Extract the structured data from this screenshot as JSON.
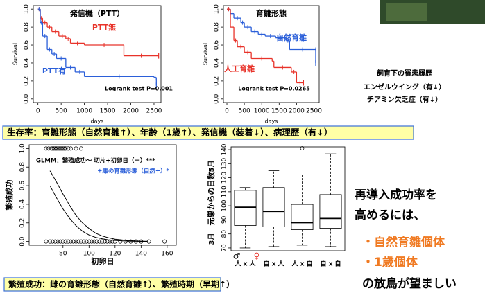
{
  "chart_data": [
    {
      "type": "step",
      "title": "発信機（PTT）",
      "x_label": "days",
      "y_label": "Survival",
      "annotation": "Logrank test P=0.001",
      "xlim": [
        -100,
        2650
      ],
      "xticks": [
        0,
        500,
        1000,
        1500,
        2000,
        2500
      ],
      "ylim": [
        -0.04,
        1.04
      ],
      "yticks": [
        {
          "value": 0,
          "label": "0.0"
        },
        0.2,
        0.4,
        0.6,
        0.8,
        {
          "value": 1,
          "label": "1.0"
        }
      ],
      "series": [
        {
          "name": "PTT無",
          "color": "#e8332a",
          "x": [
            0,
            50,
            100,
            200,
            300,
            450,
            600,
            700,
            1000,
            1850,
            2600
          ],
          "values": [
            1,
            0.9,
            0.85,
            0.8,
            0.75,
            0.7,
            0.67,
            0.62,
            0.6,
            0.48,
            0.48
          ]
        },
        {
          "name": "PTT有",
          "color": "#2b5fd9",
          "x": [
            0,
            50,
            100,
            200,
            300,
            400,
            600,
            800,
            1000,
            2500,
            2550
          ],
          "values": [
            1,
            0.85,
            0.7,
            0.55,
            0.5,
            0.45,
            0.35,
            0.3,
            0.25,
            0.24,
            0.15
          ]
        }
      ]
    },
    {
      "type": "step",
      "title": "育雛形態",
      "x_label": "days",
      "y_label": "Survival",
      "annotation": "Logrank test P=0.0265",
      "xlim": [
        -100,
        2650
      ],
      "xticks": [
        0,
        500,
        1000,
        1500,
        2000,
        2500
      ],
      "ylim": [
        -0.04,
        1.04
      ],
      "yticks": [
        {
          "value": 0,
          "label": "0.0"
        },
        0.2,
        0.4,
        0.6,
        0.8,
        {
          "value": 1,
          "label": "1.0"
        }
      ],
      "series": [
        {
          "name": "自然育雛",
          "color": "#2b5fd9",
          "x": [
            0,
            100,
            200,
            400,
            500,
            700,
            900,
            1100,
            1400,
            1700,
            1800,
            2550,
            2550
          ],
          "values": [
            1,
            0.95,
            0.9,
            0.85,
            0.8,
            0.75,
            0.72,
            0.7,
            0.68,
            0.65,
            0.55,
            0.55,
            0.4
          ]
        },
        {
          "name": "人工育雛",
          "color": "#e8332a",
          "x": [
            0,
            100,
            200,
            300,
            500,
            700,
            1300,
            1350,
            1850,
            2000,
            2200
          ],
          "values": [
            1,
            0.8,
            0.65,
            0.58,
            0.52,
            0.45,
            0.42,
            0.35,
            0.3,
            0.18,
            0.18
          ]
        }
      ]
    },
    {
      "type": "scatter",
      "x_label": "初卵日",
      "y_label": "繁殖成功",
      "annotation": "GLMM：繁殖成功～ 切片+初卵日（ー）***",
      "annotation2": "+雌の育雛形態（自然+）*",
      "xlim": [
        54,
        167
      ],
      "xticks": [
        80,
        100,
        120,
        140,
        160
      ],
      "ylim": [
        -0.04,
        1.04
      ],
      "yticks": [
        {
          "value": 0,
          "label": "0.0"
        },
        0.2,
        0.4,
        0.6,
        0.8,
        {
          "value": 1,
          "label": "1.0"
        }
      ],
      "points": {
        "x": [
          67,
          69,
          71,
          72,
          73,
          74,
          75,
          76,
          77,
          78,
          79,
          80,
          81,
          82,
          84,
          86,
          90,
          94,
          67,
          70,
          72,
          74,
          76,
          78,
          80,
          82,
          84,
          86,
          88,
          90,
          92,
          94,
          96,
          98,
          100,
          102,
          104,
          106,
          108,
          110,
          112,
          114,
          116,
          118,
          120,
          124,
          128,
          132,
          136,
          140,
          146,
          158
        ],
        "values": [
          1,
          1,
          1,
          1,
          1,
          1,
          1,
          1,
          1,
          1,
          1,
          1,
          1,
          1,
          1,
          1,
          1,
          1,
          0,
          0,
          0,
          0,
          0,
          0,
          0,
          0,
          0,
          0,
          0,
          0,
          0,
          0,
          0,
          0,
          0,
          0,
          0,
          0,
          0,
          0,
          0,
          0,
          0,
          0,
          0,
          0,
          0,
          0,
          0,
          0,
          0,
          0
        ]
      },
      "curves": [
        {
          "x": [
            70,
            75,
            80,
            85,
            90,
            95,
            100,
            105,
            110,
            115,
            120,
            130,
            140,
            145
          ],
          "values": [
            0.76,
            0.64,
            0.51,
            0.39,
            0.28,
            0.2,
            0.14,
            0.09,
            0.06,
            0.04,
            0.025,
            0.01,
            0.004,
            0.002
          ]
        },
        {
          "x": [
            70,
            75,
            80,
            85,
            90,
            95,
            100,
            105,
            110,
            115,
            120,
            130,
            140,
            145
          ],
          "values": [
            0.6,
            0.47,
            0.35,
            0.25,
            0.17,
            0.11,
            0.07,
            0.045,
            0.03,
            0.018,
            0.011,
            0.004,
            0.001,
            0.001
          ]
        }
      ]
    },
    {
      "type": "box",
      "y_label": "元巣からの日数",
      "top_month": "5月",
      "bottom_month": "3月",
      "male_label": "♂",
      "female_label": "♀",
      "categories": [
        "人 x 人",
        "自 x 人",
        "人 x 自",
        "自 x 自"
      ],
      "ylim": [
        68,
        142
      ],
      "yticks": [
        70,
        80,
        90,
        100,
        110,
        120,
        130,
        140
      ],
      "boxes": [
        {
          "min": 70,
          "q1": 86,
          "median": 99,
          "q3": 111,
          "max": 113,
          "outliers": []
        },
        {
          "min": 71,
          "q1": 85,
          "median": 96,
          "q3": 113,
          "max": 125,
          "outliers": []
        },
        {
          "min": 72,
          "q1": 83,
          "median": 88,
          "q3": 101,
          "max": 122,
          "outliers": [
            141
          ]
        },
        {
          "min": 71,
          "q1": 84,
          "median": 91,
          "q3": 108,
          "max": 137,
          "outliers": []
        }
      ]
    }
  ],
  "side_panel": {
    "title": "飼育下の罹患履歴",
    "lines": [
      "エンゼルウイング（有↓）",
      "チアミン欠乏症（有↓）"
    ]
  },
  "banners": [
    "生存率：育雛形態（自然育雛↑）、年齢（1歳↑）、発信機（装着↓）、病理歴（有↓）",
    "繁殖成功：雌の育雛形態（自然育雛↑）、繁殖時期（早期↑）"
  ],
  "conclusion": [
    "再導入成功率を",
    "高めるには、",
    "・自然育雛個体",
    "・1歳個体",
    "の放鳥が望ましい"
  ]
}
